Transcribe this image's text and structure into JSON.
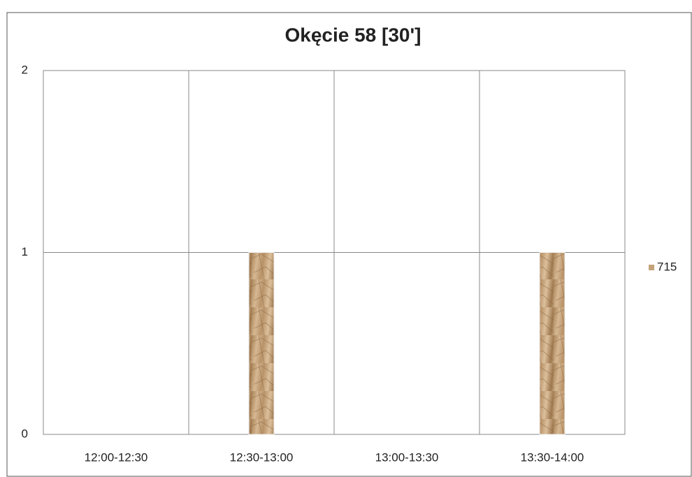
{
  "chart_data": {
    "type": "bar",
    "title": "Okęcie 58 [30']",
    "categories": [
      "12:00-12:30",
      "12:30-13:00",
      "13:00-13:30",
      "13:30-14:00"
    ],
    "series": [
      {
        "name": "715",
        "color": "#c4a27a",
        "values": [
          0,
          1,
          0,
          1
        ]
      }
    ],
    "ylim": [
      0,
      2
    ],
    "yticks": [
      0,
      1,
      2
    ],
    "grid": true,
    "legend": "right"
  }
}
